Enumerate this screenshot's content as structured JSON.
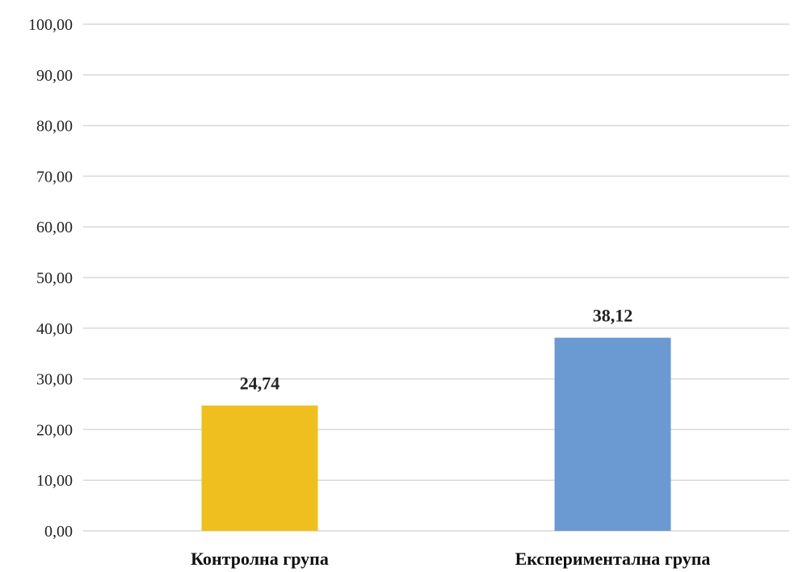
{
  "chart_data": {
    "type": "bar",
    "title": "",
    "xlabel": "",
    "ylabel": "",
    "categories": [
      "Контролна група",
      "Експериментална група"
    ],
    "values": [
      24.74,
      38.12
    ],
    "data_labels": [
      "24,74",
      "38,12"
    ],
    "bar_colors": [
      "#efbf1f",
      "#6b99d1"
    ],
    "ylim": [
      0,
      100
    ],
    "yticks": [
      0,
      10,
      20,
      30,
      40,
      50,
      60,
      70,
      80,
      90,
      100
    ],
    "ytick_labels": [
      "0,00",
      "10,00",
      "20,00",
      "30,00",
      "40,00",
      "50,00",
      "60,00",
      "70,00",
      "80,00",
      "90,00",
      "100,00"
    ],
    "grid": true,
    "legend": "none"
  }
}
